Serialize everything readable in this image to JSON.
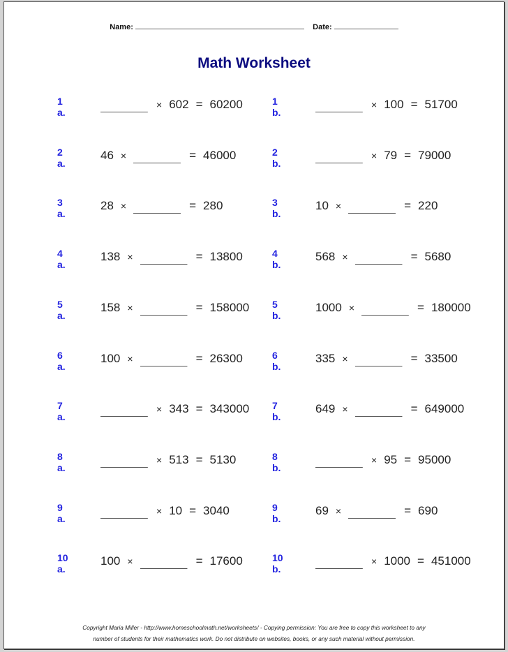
{
  "header": {
    "name_label": "Name:",
    "date_label": "Date:"
  },
  "title": "Math Worksheet",
  "blank": "________",
  "problems": [
    {
      "label": "1 a.",
      "parts": [
        "_",
        "×",
        "602",
        "=",
        "60200"
      ]
    },
    {
      "label": "1 b.",
      "parts": [
        "_",
        "×",
        "100",
        "=",
        "51700"
      ]
    },
    {
      "label": "2 a.",
      "parts": [
        "46",
        "×",
        "_",
        "=",
        "46000"
      ]
    },
    {
      "label": "2 b.",
      "parts": [
        "_",
        "×",
        "79",
        "=",
        "79000"
      ]
    },
    {
      "label": "3 a.",
      "parts": [
        "28",
        "×",
        "_",
        "=",
        "280"
      ]
    },
    {
      "label": "3 b.",
      "parts": [
        "10",
        "×",
        "_",
        "=",
        "220"
      ]
    },
    {
      "label": "4 a.",
      "parts": [
        "138",
        "×",
        "_",
        "=",
        "13800"
      ]
    },
    {
      "label": "4 b.",
      "parts": [
        "568",
        "×",
        "_",
        "=",
        "5680"
      ]
    },
    {
      "label": "5 a.",
      "parts": [
        "158",
        "×",
        "_",
        "=",
        "158000"
      ]
    },
    {
      "label": "5 b.",
      "parts": [
        "1000",
        "×",
        "_",
        "=",
        "180000"
      ]
    },
    {
      "label": "6 a.",
      "parts": [
        "100",
        "×",
        "_",
        "=",
        "26300"
      ]
    },
    {
      "label": "6 b.",
      "parts": [
        "335",
        "×",
        "_",
        "=",
        "33500"
      ]
    },
    {
      "label": "7 a.",
      "parts": [
        "_",
        "×",
        "343",
        "=",
        "343000"
      ]
    },
    {
      "label": "7 b.",
      "parts": [
        "649",
        "×",
        "_",
        "=",
        "649000"
      ]
    },
    {
      "label": "8 a.",
      "parts": [
        "_",
        "×",
        "513",
        "=",
        "5130"
      ]
    },
    {
      "label": "8 b.",
      "parts": [
        "_",
        "×",
        "95",
        "=",
        "95000"
      ]
    },
    {
      "label": "9 a.",
      "parts": [
        "_",
        "×",
        "10",
        "=",
        "3040"
      ]
    },
    {
      "label": "9 b.",
      "parts": [
        "69",
        "×",
        "_",
        "=",
        "690"
      ]
    },
    {
      "label": "10 a.",
      "parts": [
        "100",
        "×",
        "_",
        "=",
        "17600"
      ]
    },
    {
      "label": "10 b.",
      "parts": [
        "_",
        "×",
        "1000",
        "=",
        "451000"
      ]
    }
  ],
  "footer": {
    "line1": "Copyright Maria Miller - http://www.homeschoolmath.net/worksheets/ - Copying permission: You are free to copy this worksheet to any",
    "line2": "number of students for their mathematics work. Do not distribute on websites, books, or any such material without permission."
  }
}
